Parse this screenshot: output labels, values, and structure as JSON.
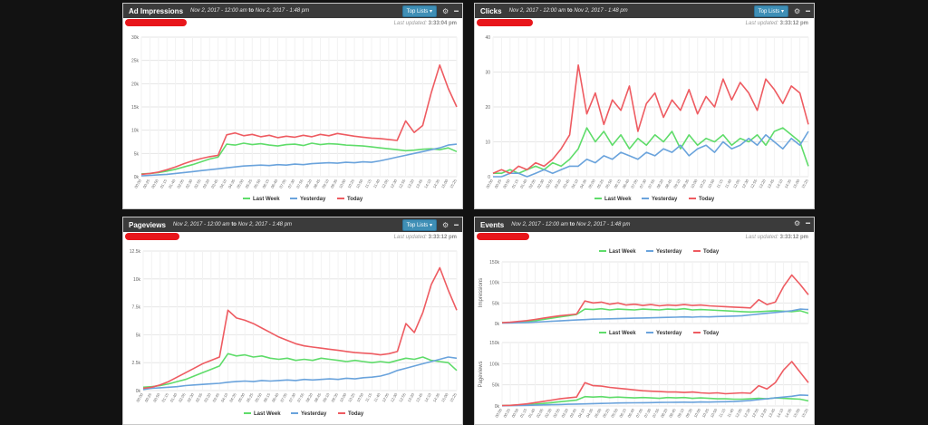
{
  "colors": {
    "last_week": "#5fdc6a",
    "yesterday": "#6aa3dc",
    "today": "#ee5b61",
    "header": "#3b3b3b",
    "redaction": "#e8161b"
  },
  "icons": {
    "settings": "gear-icon",
    "minimize": "minus-icon",
    "dropdown": "caret-down-icon"
  },
  "legend_labels": [
    "Last Week",
    "Yesterday",
    "Today"
  ],
  "time_labels": [
    "00:00",
    "00:25",
    "00:50",
    "01:15",
    "01:40",
    "02:05",
    "02:30",
    "02:55",
    "03:20",
    "03:45",
    "04:10",
    "04:35",
    "05:00",
    "05:25",
    "05:50",
    "06:15",
    "06:40",
    "07:05",
    "07:30",
    "07:55",
    "08:20",
    "08:45",
    "09:10",
    "09:35",
    "10:00",
    "10:25",
    "10:50",
    "11:15",
    "11:40",
    "12:05",
    "12:30",
    "12:55",
    "13:20",
    "13:45",
    "14:10",
    "14:35",
    "15:00",
    "15:25"
  ],
  "panels": [
    {
      "title": "Ad Impressions",
      "date_from": "Nov 2, 2017 - 12:00 am",
      "date_sep": "to",
      "date_to": "Nov 2, 2017 - 1:48 pm",
      "toplists": "Top Lists",
      "updated_label": "Last updated:",
      "updated_time": "3:33:04 pm",
      "chart_data": {
        "type": "line",
        "ylim": [
          0,
          30000
        ],
        "yticks": [
          "0k",
          "5k",
          "10k",
          "15k",
          "20k",
          "25k",
          "30k"
        ],
        "series": [
          {
            "name": "Last Week",
            "values": [
              600,
              700,
              900,
              1200,
              1600,
              2100,
              2600,
              3200,
              3800,
              4200,
              7000,
              6800,
              7200,
              6900,
              7100,
              6800,
              6600,
              6900,
              7000,
              6700,
              7200,
              6900,
              7100,
              7000,
              6800,
              6700,
              6600,
              6400,
              6200,
              6000,
              5800,
              5600,
              5700,
              5900,
              6000,
              5800,
              6200,
              5400
            ]
          },
          {
            "name": "Yesterday",
            "values": [
              200,
              300,
              400,
              500,
              700,
              900,
              1100,
              1300,
              1500,
              1700,
              1900,
              2100,
              2300,
              2400,
              2500,
              2400,
              2600,
              2500,
              2700,
              2600,
              2800,
              2900,
              3000,
              2900,
              3100,
              3000,
              3200,
              3100,
              3400,
              3800,
              4200,
              4600,
              5000,
              5400,
              5800,
              6200,
              6800,
              7000
            ]
          },
          {
            "name": "Today",
            "values": [
              500,
              700,
              1000,
              1500,
              2100,
              2800,
              3400,
              3900,
              4300,
              4600,
              9000,
              9400,
              8800,
              9100,
              8600,
              8900,
              8400,
              8700,
              8500,
              8900,
              8600,
              9100,
              8800,
              9300,
              9000,
              8700,
              8500,
              8300,
              8200,
              8000,
              7800,
              12000,
              9500,
              11000,
              18000,
              24000,
              19000,
              15000
            ]
          }
        ]
      }
    },
    {
      "title": "Clicks",
      "date_from": "Nov 2, 2017 - 12:00 am",
      "date_sep": "to",
      "date_to": "Nov 2, 2017 - 1:48 pm",
      "toplists": "Top Lists",
      "updated_label": "Last updated:",
      "updated_time": "3:33:12 pm",
      "chart_data": {
        "type": "line",
        "ylim": [
          0,
          40
        ],
        "yticks": [
          "0",
          "10",
          "20",
          "30",
          "40"
        ],
        "series": [
          {
            "name": "Last Week",
            "values": [
              1,
              1,
              2,
              1,
              2,
              3,
              2,
              4,
              3,
              5,
              8,
              14,
              10,
              13,
              9,
              12,
              8,
              11,
              9,
              12,
              10,
              13,
              8,
              12,
              9,
              11,
              10,
              12,
              9,
              11,
              10,
              12,
              9,
              13,
              14,
              12,
              10,
              3
            ]
          },
          {
            "name": "Yesterday",
            "values": [
              0,
              0,
              1,
              1,
              0,
              1,
              2,
              1,
              2,
              3,
              3,
              5,
              4,
              6,
              5,
              7,
              6,
              5,
              7,
              6,
              8,
              7,
              9,
              6,
              8,
              9,
              7,
              10,
              8,
              9,
              11,
              9,
              12,
              10,
              8,
              11,
              9,
              13
            ]
          },
          {
            "name": "Today",
            "values": [
              1,
              2,
              1,
              3,
              2,
              4,
              3,
              5,
              8,
              12,
              32,
              18,
              24,
              15,
              22,
              19,
              26,
              13,
              21,
              24,
              17,
              22,
              19,
              25,
              18,
              23,
              20,
              28,
              22,
              27,
              24,
              19,
              28,
              25,
              21,
              26,
              24,
              15
            ]
          }
        ]
      }
    },
    {
      "title": "Pageviews",
      "date_from": "Nov 2, 2017 - 12:00 am",
      "date_sep": "to",
      "date_to": "Nov 2, 2017 - 1:48 pm",
      "toplists": "Top Lists",
      "updated_label": "Last updated:",
      "updated_time": "3:33:12 pm",
      "chart_data": {
        "type": "line",
        "ylim": [
          0,
          12500
        ],
        "yticks": [
          "0k",
          "2.5k",
          "5k",
          "7.5k",
          "10k",
          "12.5k"
        ],
        "series": [
          {
            "name": "Last Week",
            "values": [
              300,
              350,
              450,
              600,
              800,
              1000,
              1300,
              1600,
              1900,
              2200,
              3300,
              3100,
              3200,
              3000,
              3100,
              2900,
              2800,
              2900,
              2700,
              2800,
              2700,
              2900,
              2800,
              2700,
              2600,
              2700,
              2600,
              2500,
              2600,
              2500,
              2700,
              2900,
              2800,
              3000,
              2700,
              2600,
              2500,
              1800
            ]
          },
          {
            "name": "Yesterday",
            "values": [
              100,
              200,
              250,
              300,
              350,
              450,
              500,
              550,
              600,
              650,
              750,
              800,
              850,
              800,
              900,
              850,
              900,
              950,
              900,
              1000,
              950,
              1000,
              1050,
              1000,
              1100,
              1050,
              1150,
              1200,
              1300,
              1500,
              1800,
              2000,
              2200,
              2400,
              2600,
              2800,
              3000,
              2900
            ]
          },
          {
            "name": "Today",
            "values": [
              200,
              300,
              500,
              800,
              1200,
              1600,
              2000,
              2400,
              2700,
              3000,
              7200,
              6500,
              6300,
              6000,
              5600,
              5200,
              4800,
              4500,
              4200,
              4000,
              3900,
              3800,
              3700,
              3600,
              3500,
              3400,
              3350,
              3300,
              3200,
              3300,
              3500,
              6000,
              5200,
              7000,
              9500,
              11000,
              9000,
              7200
            ]
          }
        ]
      }
    },
    {
      "title": "Events",
      "date_from": "Nov 2, 2017 - 12:00 am",
      "date_sep": "to",
      "date_to": "Nov 2, 2017 - 1:48 pm",
      "updated_label": "Last updated:",
      "updated_time": "3:33:12 pm",
      "chart_data": [
        {
          "type": "line",
          "ylabel": "Impressions",
          "ylim": [
            0,
            150000
          ],
          "yticks": [
            "0k",
            "50k",
            "100k",
            "150k"
          ],
          "series": [
            {
              "name": "Last Week",
              "values": [
                2000,
                2500,
                3500,
                5000,
                7000,
                10000,
                13000,
                16000,
                19000,
                22000,
                35000,
                34000,
                36000,
                33000,
                35000,
                34000,
                33000,
                35000,
                34000,
                33000,
                35000,
                34000,
                36000,
                33000,
                34000,
                33000,
                32000,
                31000,
                30000,
                29000,
                28000,
                29000,
                30000,
                31000,
                30000,
                29000,
                31000,
                25000
              ]
            },
            {
              "name": "Yesterday",
              "values": [
                1000,
                1500,
                2000,
                2500,
                3500,
                4500,
                5500,
                6500,
                7500,
                8500,
                9500,
                10500,
                11000,
                11500,
                12000,
                12500,
                13000,
                13500,
                14000,
                14500,
                15000,
                15500,
                16000,
                15500,
                16500,
                16000,
                17000,
                17500,
                18000,
                19000,
                21000,
                23000,
                25000,
                27000,
                29000,
                31000,
                35000,
                34000
              ]
            },
            {
              "name": "Today",
              "values": [
                2000,
                3000,
                5000,
                7000,
                10000,
                13000,
                16000,
                19000,
                21000,
                23000,
                55000,
                50000,
                52000,
                47000,
                50000,
                45000,
                47000,
                44000,
                46000,
                43000,
                45000,
                44000,
                46000,
                44000,
                45000,
                43000,
                42000,
                41000,
                40000,
                39000,
                38000,
                58000,
                46000,
                52000,
                90000,
                118000,
                95000,
                70000
              ]
            }
          ]
        },
        {
          "type": "line",
          "ylabel": "Pageviews",
          "ylim": [
            0,
            150000
          ],
          "yticks": [
            "0k",
            "50k",
            "100k",
            "150k"
          ],
          "series": [
            {
              "name": "Last Week",
              "values": [
                1000,
                1500,
                2000,
                3000,
                4500,
                6000,
                8000,
                10000,
                12000,
                14000,
                22000,
                21000,
                22000,
                20000,
                21000,
                20000,
                19000,
                20000,
                19000,
                18000,
                20000,
                19000,
                20000,
                18000,
                19000,
                18000,
                17000,
                17000,
                16000,
                16000,
                17000,
                18000,
                17000,
                19000,
                18000,
                17000,
                16000,
                12000
              ]
            },
            {
              "name": "Yesterday",
              "values": [
                500,
                800,
                1000,
                1500,
                2000,
                2500,
                3000,
                3500,
                4000,
                4500,
                5000,
                5500,
                6000,
                6500,
                7000,
                7200,
                7500,
                7800,
                8000,
                8300,
                8500,
                8800,
                9000,
                8800,
                9500,
                9300,
                9800,
                10000,
                10500,
                11500,
                13000,
                15000,
                17000,
                19000,
                21000,
                23000,
                26000,
                25000
              ]
            },
            {
              "name": "Today",
              "values": [
                1000,
                1500,
                3000,
                5000,
                8000,
                11000,
                14000,
                17000,
                19000,
                21000,
                55000,
                48000,
                47000,
                44000,
                42000,
                40000,
                38000,
                36000,
                35000,
                34000,
                33000,
                33000,
                32000,
                33000,
                31000,
                30000,
                31000,
                29000,
                30000,
                31000,
                30000,
                48000,
                40000,
                55000,
                85000,
                105000,
                80000,
                55000
              ]
            }
          ]
        }
      ]
    }
  ]
}
